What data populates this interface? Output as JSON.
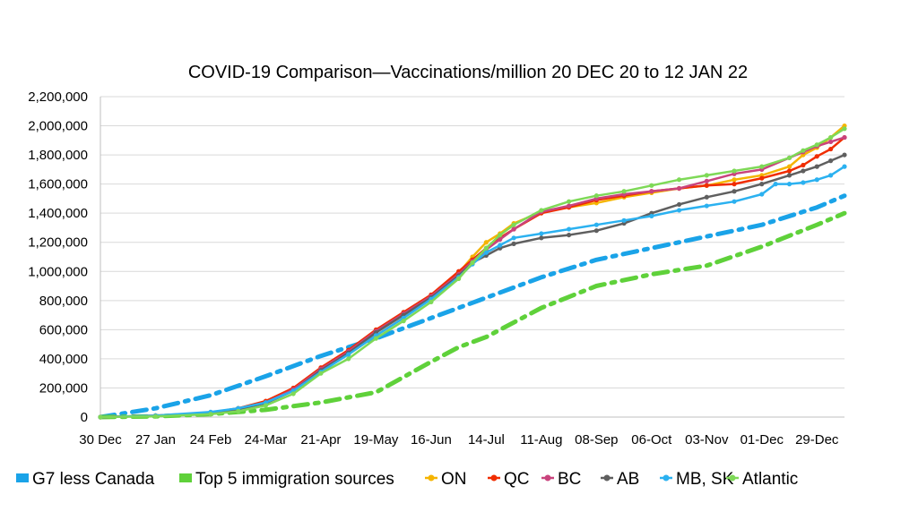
{
  "chart_data": {
    "type": "line",
    "title": "COVID-19 Comparison—Vaccinations/million 20 DEC 20 to 12 JAN 22",
    "xlabel": "",
    "ylabel": "",
    "ylim": [
      0,
      2200000
    ],
    "y_ticks": [
      0,
      200000,
      400000,
      600000,
      800000,
      1000000,
      1200000,
      1400000,
      1600000,
      1800000,
      2000000,
      2200000
    ],
    "y_tick_labels": [
      "0",
      "200,000",
      "400,000",
      "600,000",
      "800,000",
      "1,000,000",
      "1,200,000",
      "1,400,000",
      "1,600,000",
      "1,800,000",
      "2,000,000",
      "2,200,000"
    ],
    "x_tick_labels": [
      "30 Dec",
      "27 Jan",
      "24 Feb",
      "24-Mar",
      "21-Apr",
      "19-May",
      "16-Jun",
      "14-Jul",
      "11-Aug",
      "08-Sep",
      "06-Oct",
      "03-Nov",
      "01-Dec",
      "29-Dec"
    ],
    "x_tick_weeks": [
      0,
      4,
      8,
      12,
      16,
      20,
      24,
      28,
      32,
      36,
      40,
      44,
      48,
      52
    ],
    "x_range_weeks": [
      0,
      54
    ],
    "grid": true,
    "legend_position": "bottom",
    "series": [
      {
        "name": "G7 less Canada",
        "color": "#1AA3E8",
        "style": "dashdot",
        "marker": "none",
        "x": [
          0,
          4,
          8,
          12,
          16,
          20,
          24,
          28,
          32,
          36,
          40,
          44,
          48,
          52,
          54
        ],
        "y": [
          0,
          60000,
          150000,
          280000,
          420000,
          540000,
          680000,
          820000,
          960000,
          1080000,
          1160000,
          1240000,
          1320000,
          1440000,
          1520000
        ]
      },
      {
        "name": "Top 5 immigration sources",
        "color": "#5FD13A",
        "style": "dashdot",
        "marker": "none",
        "x": [
          0,
          4,
          8,
          12,
          16,
          20,
          24,
          26,
          28,
          32,
          36,
          40,
          44,
          48,
          52,
          54
        ],
        "y": [
          0,
          5000,
          20000,
          50000,
          100000,
          170000,
          380000,
          480000,
          550000,
          750000,
          900000,
          980000,
          1040000,
          1170000,
          1320000,
          1400000
        ]
      },
      {
        "name": "ON",
        "color": "#F5B400",
        "style": "solid",
        "marker": "dot",
        "x": [
          0,
          4,
          8,
          10,
          12,
          14,
          16,
          18,
          20,
          22,
          24,
          26,
          27,
          28,
          29,
          30,
          32,
          34,
          36,
          38,
          40,
          42,
          44,
          46,
          48,
          50,
          51,
          52,
          53,
          54
        ],
        "y": [
          0,
          10000,
          30000,
          60000,
          100000,
          180000,
          320000,
          430000,
          560000,
          680000,
          820000,
          990000,
          1100000,
          1200000,
          1260000,
          1330000,
          1410000,
          1440000,
          1470000,
          1510000,
          1540000,
          1570000,
          1590000,
          1630000,
          1660000,
          1720000,
          1800000,
          1850000,
          1920000,
          2000000
        ]
      },
      {
        "name": "QC",
        "color": "#F02D00",
        "style": "solid",
        "marker": "dot",
        "x": [
          0,
          4,
          8,
          10,
          12,
          14,
          16,
          18,
          20,
          22,
          24,
          26,
          27,
          28,
          29,
          30,
          32,
          34,
          36,
          38,
          40,
          42,
          44,
          46,
          48,
          50,
          51,
          52,
          53,
          54
        ],
        "y": [
          0,
          10000,
          30000,
          60000,
          110000,
          200000,
          340000,
          460000,
          600000,
          720000,
          840000,
          1000000,
          1080000,
          1160000,
          1230000,
          1290000,
          1400000,
          1440000,
          1490000,
          1520000,
          1550000,
          1570000,
          1590000,
          1600000,
          1640000,
          1690000,
          1730000,
          1790000,
          1840000,
          1920000
        ]
      },
      {
        "name": "BC",
        "color": "#C9437D",
        "style": "solid",
        "marker": "dot",
        "x": [
          0,
          4,
          8,
          10,
          12,
          14,
          16,
          18,
          20,
          22,
          24,
          26,
          27,
          28,
          29,
          30,
          32,
          34,
          36,
          38,
          40,
          42,
          44,
          46,
          48,
          50,
          51,
          52,
          53,
          54
        ],
        "y": [
          0,
          8000,
          28000,
          55000,
          100000,
          190000,
          330000,
          450000,
          590000,
          710000,
          830000,
          980000,
          1070000,
          1150000,
          1220000,
          1290000,
          1410000,
          1450000,
          1500000,
          1530000,
          1550000,
          1570000,
          1620000,
          1670000,
          1700000,
          1780000,
          1820000,
          1860000,
          1890000,
          1920000
        ]
      },
      {
        "name": "AB",
        "color": "#5F5F5F",
        "style": "solid",
        "marker": "dot",
        "x": [
          0,
          4,
          8,
          10,
          12,
          14,
          16,
          18,
          20,
          22,
          24,
          26,
          27,
          28,
          29,
          30,
          32,
          34,
          36,
          38,
          40,
          42,
          44,
          46,
          48,
          50,
          51,
          52,
          53,
          54
        ],
        "y": [
          0,
          8000,
          28000,
          55000,
          95000,
          180000,
          320000,
          440000,
          580000,
          700000,
          820000,
          970000,
          1060000,
          1110000,
          1160000,
          1190000,
          1230000,
          1250000,
          1280000,
          1330000,
          1400000,
          1460000,
          1510000,
          1550000,
          1600000,
          1660000,
          1690000,
          1720000,
          1760000,
          1800000
        ]
      },
      {
        "name": "MB, SK",
        "color": "#2BB1F0",
        "style": "solid",
        "marker": "dot",
        "x": [
          0,
          4,
          8,
          10,
          12,
          14,
          16,
          18,
          20,
          22,
          24,
          26,
          27,
          28,
          29,
          30,
          32,
          34,
          36,
          38,
          40,
          42,
          44,
          46,
          48,
          49,
          50,
          51,
          52,
          53,
          54
        ],
        "y": [
          0,
          10000,
          35000,
          60000,
          100000,
          180000,
          310000,
          430000,
          560000,
          680000,
          810000,
          960000,
          1050000,
          1130000,
          1180000,
          1230000,
          1260000,
          1290000,
          1320000,
          1350000,
          1380000,
          1420000,
          1450000,
          1480000,
          1530000,
          1600000,
          1600000,
          1610000,
          1630000,
          1660000,
          1720000
        ]
      },
      {
        "name": "Atlantic",
        "color": "#7ED957",
        "style": "solid",
        "marker": "dot",
        "x": [
          0,
          4,
          8,
          10,
          12,
          14,
          16,
          18,
          20,
          22,
          24,
          26,
          27,
          28,
          29,
          30,
          32,
          34,
          36,
          38,
          40,
          42,
          44,
          46,
          48,
          50,
          51,
          52,
          53,
          54
        ],
        "y": [
          0,
          5000,
          20000,
          40000,
          80000,
          160000,
          300000,
          400000,
          540000,
          660000,
          790000,
          950000,
          1060000,
          1160000,
          1250000,
          1320000,
          1420000,
          1480000,
          1520000,
          1550000,
          1590000,
          1630000,
          1660000,
          1690000,
          1720000,
          1780000,
          1830000,
          1870000,
          1920000,
          1980000
        ]
      }
    ]
  }
}
